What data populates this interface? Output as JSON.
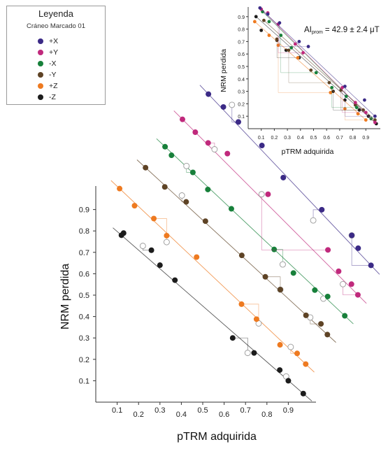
{
  "legend": {
    "title": "Leyenda",
    "subtitle": "Cráneo Marcado 01",
    "items": [
      {
        "label": "+X",
        "color": "#3b2a86"
      },
      {
        "label": "+Y",
        "color": "#c0297c"
      },
      {
        "label": "-X",
        "color": "#17803a"
      },
      {
        "label": "-Y",
        "color": "#5e4325"
      },
      {
        "label": "+Z",
        "color": "#ee7a20"
      },
      {
        "label": "-Z",
        "color": "#1c1c1c"
      }
    ]
  },
  "chart_data": [
    {
      "type": "scatter",
      "subtype": "stacked arai plot",
      "xlabel": "pTRM adquirida",
      "ylabel": "NRM perdida",
      "xticks": [
        0.1,
        0.2,
        0.3,
        0.4,
        0.5,
        0.6,
        0.7,
        0.8,
        0.9
      ],
      "yticks": [
        0.1,
        0.2,
        0.3,
        0.4,
        0.5,
        0.6,
        0.7,
        0.8,
        0.9
      ],
      "xlim": [
        0,
        1.0
      ],
      "ylim": [
        0,
        1.0
      ],
      "series_offset": [
        0.09,
        0.105
      ],
      "series": [
        {
          "name": "-Z",
          "color": "#1c1c1c",
          "points": [
            [
              0.12,
              0.78
            ],
            [
              0.13,
              0.79
            ],
            [
              0.26,
              0.71
            ],
            [
              0.3,
              0.64
            ],
            [
              0.37,
              0.57
            ],
            [
              0.64,
              0.3
            ],
            [
              0.74,
              0.23
            ],
            [
              0.86,
              0.15
            ],
            [
              0.9,
              0.1
            ],
            [
              0.97,
              0.04
            ]
          ],
          "checks": [
            [
              0.22,
              0.73
            ],
            [
              0.71,
              0.23
            ],
            [
              0.89,
              0.12
            ]
          ]
        },
        {
          "name": "+Z",
          "color": "#ee7a20",
          "points": [
            [
              0.01,
              0.89
            ],
            [
              0.08,
              0.81
            ],
            [
              0.17,
              0.75
            ],
            [
              0.23,
              0.67
            ],
            [
              0.37,
              0.57
            ],
            [
              0.58,
              0.35
            ],
            [
              0.65,
              0.28
            ],
            [
              0.76,
              0.16
            ],
            [
              0.84,
              0.12
            ],
            [
              0.88,
              0.07
            ]
          ],
          "checks": [
            [
              0.23,
              0.64
            ],
            [
              0.66,
              0.26
            ],
            [
              0.81,
              0.15
            ]
          ]
        },
        {
          "name": "-Y",
          "color": "#5e4325",
          "points": [
            [
              0.03,
              0.88
            ],
            [
              0.12,
              0.79
            ],
            [
              0.22,
              0.72
            ],
            [
              0.31,
              0.63
            ],
            [
              0.48,
              0.47
            ],
            [
              0.59,
              0.37
            ],
            [
              0.66,
              0.31
            ],
            [
              0.78,
              0.19
            ],
            [
              0.85,
              0.15
            ],
            [
              0.88,
              0.1
            ]
          ],
          "checks": [
            [
              0.2,
              0.75
            ],
            [
              0.66,
              0.31
            ],
            [
              0.8,
              0.18
            ]
          ]
        },
        {
          "name": "-X",
          "color": "#17803a",
          "points": [
            [
              0.02,
              0.87
            ],
            [
              0.05,
              0.83
            ],
            [
              0.15,
              0.75
            ],
            [
              0.22,
              0.67
            ],
            [
              0.33,
              0.58
            ],
            [
              0.53,
              0.39
            ],
            [
              0.62,
              0.28
            ],
            [
              0.72,
              0.2
            ],
            [
              0.78,
              0.17
            ],
            [
              0.86,
              0.08
            ]
          ],
          "checks": [
            [
              0.12,
              0.78
            ],
            [
              0.57,
              0.32
            ],
            [
              0.76,
              0.16
            ]
          ]
        },
        {
          "name": "+Y",
          "color": "#c0297c",
          "points": [
            [
              0.0,
              0.89
            ],
            [
              0.06,
              0.83
            ],
            [
              0.12,
              0.78
            ],
            [
              0.21,
              0.73
            ],
            [
              0.4,
              0.54
            ],
            [
              0.68,
              0.28
            ],
            [
              0.73,
              0.18
            ],
            [
              0.79,
              0.12
            ],
            [
              0.82,
              0.07
            ]
          ],
          "checks": [
            [
              0.15,
              0.75
            ],
            [
              0.37,
              0.54
            ],
            [
              0.75,
              0.12
            ]
          ]
        },
        {
          "name": "+X",
          "color": "#3b2a86",
          "points": [
            [
              0.02,
              0.9
            ],
            [
              0.09,
              0.84
            ],
            [
              0.16,
              0.77
            ],
            [
              0.27,
              0.66
            ],
            [
              0.37,
              0.51
            ],
            [
              0.55,
              0.36
            ],
            [
              0.69,
              0.24
            ],
            [
              0.72,
              0.18
            ],
            [
              0.78,
              0.1
            ]
          ],
          "checks": [
            [
              0.13,
              0.85
            ],
            [
              0.51,
              0.31
            ],
            [
              0.69,
              0.24
            ]
          ]
        }
      ]
    },
    {
      "type": "scatter",
      "subtype": "arai plot inset",
      "xlabel": "pTRM adquirida",
      "ylabel": "NRM perdida",
      "annotation_prefix": "AI",
      "annotation_sub": "prom",
      "annotation_value": "= 42.9 ± 2.4 μT",
      "xticks": [
        0.1,
        0.2,
        0.3,
        0.4,
        0.5,
        0.6,
        0.7,
        0.8,
        0.9
      ],
      "yticks": [
        0.1,
        0.2,
        0.3,
        0.4,
        0.5,
        0.6,
        0.7,
        0.8,
        0.9
      ],
      "xlim": [
        0,
        1.0
      ],
      "ylim": [
        0,
        1.0
      ],
      "series": [
        {
          "name": "-Z",
          "color": "#1c1c1c",
          "points": [
            [
              0.06,
              0.9
            ],
            [
              0.1,
              0.79
            ],
            [
              0.22,
              0.71
            ],
            [
              0.29,
              0.63
            ],
            [
              0.39,
              0.57
            ],
            [
              0.65,
              0.3
            ],
            [
              0.74,
              0.23
            ],
            [
              0.85,
              0.15
            ],
            [
              0.92,
              0.1
            ],
            [
              0.98,
              0.04
            ]
          ]
        },
        {
          "name": "+Z",
          "color": "#ee7a20",
          "points": [
            [
              0.05,
              0.86
            ],
            [
              0.16,
              0.75
            ],
            [
              0.23,
              0.67
            ],
            [
              0.38,
              0.57
            ],
            [
              0.63,
              0.29
            ],
            [
              0.74,
              0.16
            ],
            [
              0.84,
              0.12
            ],
            [
              0.9,
              0.07
            ]
          ]
        },
        {
          "name": "-Y",
          "color": "#5e4325",
          "points": [
            [
              0.12,
              0.87
            ],
            [
              0.22,
              0.72
            ],
            [
              0.31,
              0.63
            ],
            [
              0.48,
              0.47
            ],
            [
              0.62,
              0.37
            ],
            [
              0.71,
              0.31
            ],
            [
              0.82,
              0.19
            ],
            [
              0.88,
              0.15
            ],
            [
              0.97,
              0.07
            ]
          ]
        },
        {
          "name": "-X",
          "color": "#17803a",
          "points": [
            [
              0.11,
              0.94
            ],
            [
              0.16,
              0.86
            ],
            [
              0.25,
              0.75
            ],
            [
              0.33,
              0.65
            ],
            [
              0.52,
              0.45
            ],
            [
              0.64,
              0.33
            ],
            [
              0.75,
              0.26
            ],
            [
              0.83,
              0.17
            ],
            [
              0.94,
              0.08
            ]
          ]
        },
        {
          "name": "+Y",
          "color": "#c0297c",
          "points": [
            [
              0.1,
              0.96
            ],
            [
              0.15,
              0.93
            ],
            [
              0.23,
              0.84
            ],
            [
              0.36,
              0.68
            ],
            [
              0.42,
              0.61
            ],
            [
              0.72,
              0.33
            ],
            [
              0.82,
              0.21
            ],
            [
              0.9,
              0.13
            ],
            [
              0.97,
              0.05
            ]
          ]
        },
        {
          "name": "+X",
          "color": "#3b2a86",
          "points": [
            [
              0.09,
              0.97
            ],
            [
              0.15,
              0.92
            ],
            [
              0.24,
              0.85
            ],
            [
              0.39,
              0.7
            ],
            [
              0.46,
              0.66
            ],
            [
              0.74,
              0.34
            ],
            [
              0.89,
              0.23
            ],
            [
              0.97,
              0.1
            ]
          ]
        }
      ]
    }
  ]
}
